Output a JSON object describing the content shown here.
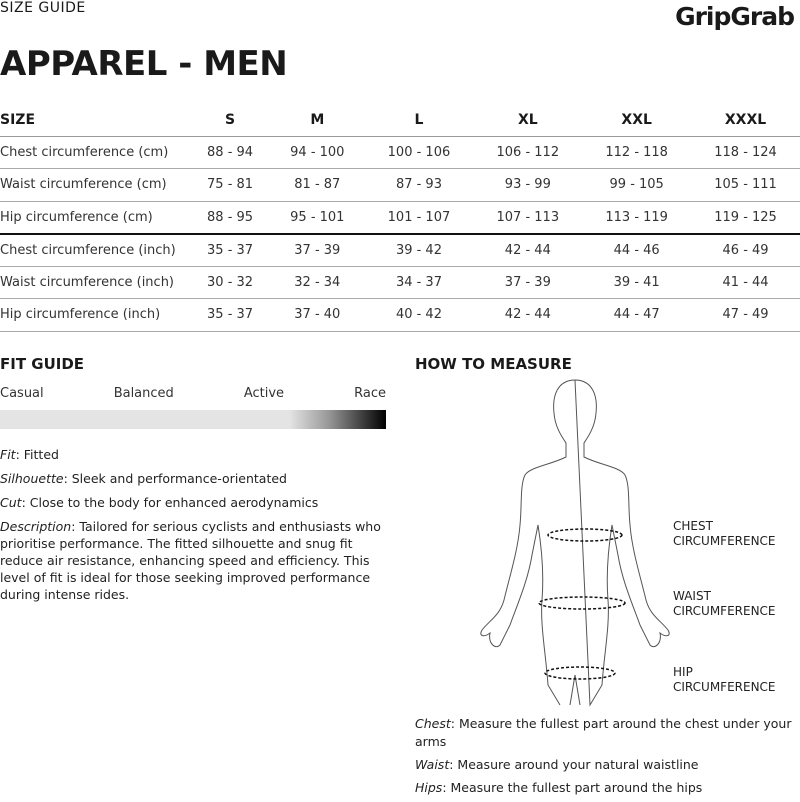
{
  "header": {
    "kicker": "SIZE GUIDE",
    "logo": "GripGrab",
    "title": "APPAREL - MEN"
  },
  "table": {
    "headers": [
      "SIZE",
      "S",
      "M",
      "L",
      "XL",
      "XXL",
      "XXXL"
    ],
    "rows": [
      [
        "Chest circumference (cm)",
        "88 - 94",
        "94 - 100",
        "100 - 106",
        "106 - 112",
        "112 - 118",
        "118 - 124"
      ],
      [
        "Waist circumference (cm)",
        "75 - 81",
        "81 - 87",
        "87 - 93",
        "93 - 99",
        "99 - 105",
        "105 - 111"
      ],
      [
        "Hip circumference (cm)",
        "88 - 95",
        "95 - 101",
        "101 - 107",
        "107 - 113",
        "113 - 119",
        "119 - 125"
      ],
      [
        "Chest circumference (inch)",
        "35 - 37",
        "37 - 39",
        "39 - 42",
        "42 - 44",
        "44 - 46",
        "46 - 49"
      ],
      [
        "Waist circumference (inch)",
        "30 - 32",
        "32 - 34",
        "34 - 37",
        "37 - 39",
        "39 - 41",
        "41 - 44"
      ],
      [
        "Hip circumference (inch)",
        "35 - 37",
        "37 - 40",
        "40 - 42",
        "42 - 44",
        "44 - 47",
        "47 - 49"
      ]
    ]
  },
  "fit_guide": {
    "heading": "FIT GUIDE",
    "scale": [
      "Casual",
      "Balanced",
      "Active",
      "Race"
    ],
    "level_percent": 100,
    "items": [
      {
        "label": "Fit",
        "text": ": Fitted"
      },
      {
        "label": "Silhouette",
        "text": ": Sleek and performance-orientated"
      },
      {
        "label": "Cut",
        "text": ": Close to the body for enhanced aerodynamics"
      },
      {
        "label": "Description",
        "text": ": Tailored for serious cyclists and enthusiasts who prioritise performance. The fitted silhouette and snug fit reduce air resistance, enhancing speed and efficiency. This level of fit is ideal for those seeking improved performance during intense rides."
      }
    ]
  },
  "how_to_measure": {
    "heading": "HOW TO MEASURE",
    "labels": [
      [
        "CHEST",
        "CIRCUMFERENCE"
      ],
      [
        "WAIST",
        "CIRCUMFERENCE"
      ],
      [
        "HIP",
        "CIRCUMFERENCE"
      ]
    ],
    "items": [
      {
        "label": "Chest",
        "text": ": Measure the fullest part around the chest under your arms"
      },
      {
        "label": "Waist",
        "text": ": Measure around your natural waistline"
      },
      {
        "label": "Hips",
        "text": ": Measure the fullest part around the hips"
      }
    ]
  }
}
